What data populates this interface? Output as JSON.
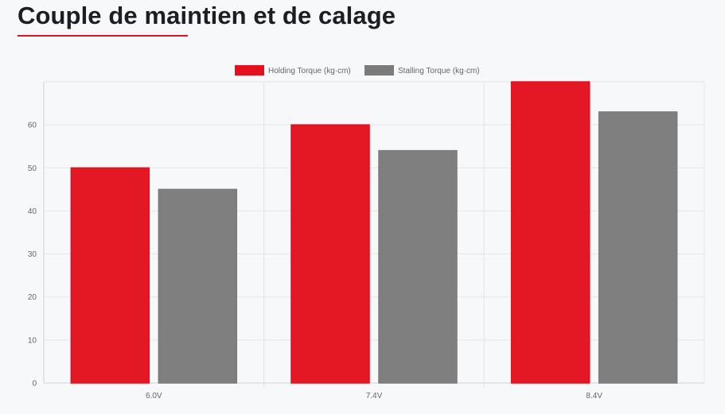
{
  "page": {
    "title": "Couple de maintien et de calage"
  },
  "colors": {
    "holding": "#e3101e",
    "stalling": "#7b7b7b",
    "grid": "#e4e5e8",
    "axis": "#d0d2d6",
    "title_rule": "#e3101e"
  },
  "chart_data": {
    "type": "bar",
    "title": "",
    "xlabel": "",
    "ylabel": "",
    "categories": [
      "6.0V",
      "7.4V",
      "8.4V"
    ],
    "series": [
      {
        "name": "Holding Torque (kg·cm)",
        "color": "#e3101e",
        "values": [
          50,
          60,
          70
        ]
      },
      {
        "name": "Stalling Torque (kg·cm)",
        "color": "#7b7b7b",
        "values": [
          45,
          54,
          63
        ]
      }
    ],
    "ylim": [
      0,
      70
    ],
    "yticks": [
      0,
      10,
      20,
      30,
      40,
      50,
      60
    ],
    "grid": true,
    "legend_position": "top-center"
  }
}
